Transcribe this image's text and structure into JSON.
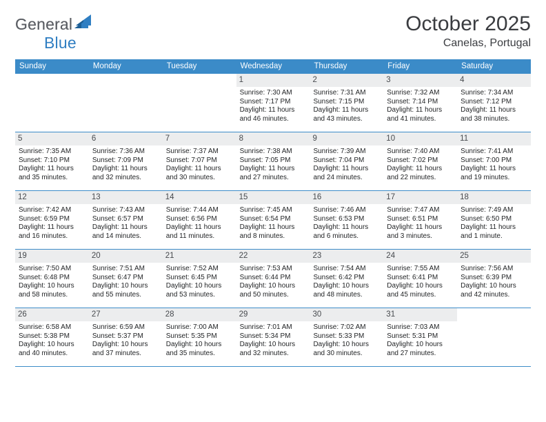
{
  "logo": {
    "gray_text": "General",
    "blue_text": "Blue"
  },
  "colors": {
    "header_bar": "#3b8bc8",
    "logo_gray": "#5b5e64",
    "logo_blue": "#2f7ec2",
    "daynum_bg": "#ecedee",
    "text": "#222426"
  },
  "title": "October 2025",
  "location": "Canelas, Portugal",
  "weekdays": [
    "Sunday",
    "Monday",
    "Tuesday",
    "Wednesday",
    "Thursday",
    "Friday",
    "Saturday"
  ],
  "weeks": [
    [
      {
        "empty": true
      },
      {
        "empty": true
      },
      {
        "empty": true
      },
      {
        "num": "1",
        "sunrise": "7:30 AM",
        "sunset": "7:17 PM",
        "daylight_h": "11",
        "daylight_m": "46"
      },
      {
        "num": "2",
        "sunrise": "7:31 AM",
        "sunset": "7:15 PM",
        "daylight_h": "11",
        "daylight_m": "43"
      },
      {
        "num": "3",
        "sunrise": "7:32 AM",
        "sunset": "7:14 PM",
        "daylight_h": "11",
        "daylight_m": "41"
      },
      {
        "num": "4",
        "sunrise": "7:34 AM",
        "sunset": "7:12 PM",
        "daylight_h": "11",
        "daylight_m": "38"
      }
    ],
    [
      {
        "num": "5",
        "sunrise": "7:35 AM",
        "sunset": "7:10 PM",
        "daylight_h": "11",
        "daylight_m": "35"
      },
      {
        "num": "6",
        "sunrise": "7:36 AM",
        "sunset": "7:09 PM",
        "daylight_h": "11",
        "daylight_m": "32"
      },
      {
        "num": "7",
        "sunrise": "7:37 AM",
        "sunset": "7:07 PM",
        "daylight_h": "11",
        "daylight_m": "30"
      },
      {
        "num": "8",
        "sunrise": "7:38 AM",
        "sunset": "7:05 PM",
        "daylight_h": "11",
        "daylight_m": "27"
      },
      {
        "num": "9",
        "sunrise": "7:39 AM",
        "sunset": "7:04 PM",
        "daylight_h": "11",
        "daylight_m": "24"
      },
      {
        "num": "10",
        "sunrise": "7:40 AM",
        "sunset": "7:02 PM",
        "daylight_h": "11",
        "daylight_m": "22"
      },
      {
        "num": "11",
        "sunrise": "7:41 AM",
        "sunset": "7:00 PM",
        "daylight_h": "11",
        "daylight_m": "19"
      }
    ],
    [
      {
        "num": "12",
        "sunrise": "7:42 AM",
        "sunset": "6:59 PM",
        "daylight_h": "11",
        "daylight_m": "16"
      },
      {
        "num": "13",
        "sunrise": "7:43 AM",
        "sunset": "6:57 PM",
        "daylight_h": "11",
        "daylight_m": "14"
      },
      {
        "num": "14",
        "sunrise": "7:44 AM",
        "sunset": "6:56 PM",
        "daylight_h": "11",
        "daylight_m": "11"
      },
      {
        "num": "15",
        "sunrise": "7:45 AM",
        "sunset": "6:54 PM",
        "daylight_h": "11",
        "daylight_m": "8"
      },
      {
        "num": "16",
        "sunrise": "7:46 AM",
        "sunset": "6:53 PM",
        "daylight_h": "11",
        "daylight_m": "6"
      },
      {
        "num": "17",
        "sunrise": "7:47 AM",
        "sunset": "6:51 PM",
        "daylight_h": "11",
        "daylight_m": "3"
      },
      {
        "num": "18",
        "sunrise": "7:49 AM",
        "sunset": "6:50 PM",
        "daylight_h": "11",
        "daylight_m": "1",
        "singular_min": true
      }
    ],
    [
      {
        "num": "19",
        "sunrise": "7:50 AM",
        "sunset": "6:48 PM",
        "daylight_h": "10",
        "daylight_m": "58"
      },
      {
        "num": "20",
        "sunrise": "7:51 AM",
        "sunset": "6:47 PM",
        "daylight_h": "10",
        "daylight_m": "55"
      },
      {
        "num": "21",
        "sunrise": "7:52 AM",
        "sunset": "6:45 PM",
        "daylight_h": "10",
        "daylight_m": "53"
      },
      {
        "num": "22",
        "sunrise": "7:53 AM",
        "sunset": "6:44 PM",
        "daylight_h": "10",
        "daylight_m": "50"
      },
      {
        "num": "23",
        "sunrise": "7:54 AM",
        "sunset": "6:42 PM",
        "daylight_h": "10",
        "daylight_m": "48"
      },
      {
        "num": "24",
        "sunrise": "7:55 AM",
        "sunset": "6:41 PM",
        "daylight_h": "10",
        "daylight_m": "45"
      },
      {
        "num": "25",
        "sunrise": "7:56 AM",
        "sunset": "6:39 PM",
        "daylight_h": "10",
        "daylight_m": "42"
      }
    ],
    [
      {
        "num": "26",
        "sunrise": "6:58 AM",
        "sunset": "5:38 PM",
        "daylight_h": "10",
        "daylight_m": "40"
      },
      {
        "num": "27",
        "sunrise": "6:59 AM",
        "sunset": "5:37 PM",
        "daylight_h": "10",
        "daylight_m": "37"
      },
      {
        "num": "28",
        "sunrise": "7:00 AM",
        "sunset": "5:35 PM",
        "daylight_h": "10",
        "daylight_m": "35"
      },
      {
        "num": "29",
        "sunrise": "7:01 AM",
        "sunset": "5:34 PM",
        "daylight_h": "10",
        "daylight_m": "32"
      },
      {
        "num": "30",
        "sunrise": "7:02 AM",
        "sunset": "5:33 PM",
        "daylight_h": "10",
        "daylight_m": "30"
      },
      {
        "num": "31",
        "sunrise": "7:03 AM",
        "sunset": "5:31 PM",
        "daylight_h": "10",
        "daylight_m": "27"
      },
      {
        "empty": true
      }
    ]
  ],
  "labels": {
    "sunrise_prefix": "Sunrise: ",
    "sunset_prefix": "Sunset: ",
    "daylight_prefix": "Daylight: ",
    "hours_word": " hours",
    "and_word": "and ",
    "minutes_word": " minutes.",
    "minute_word": " minute."
  }
}
